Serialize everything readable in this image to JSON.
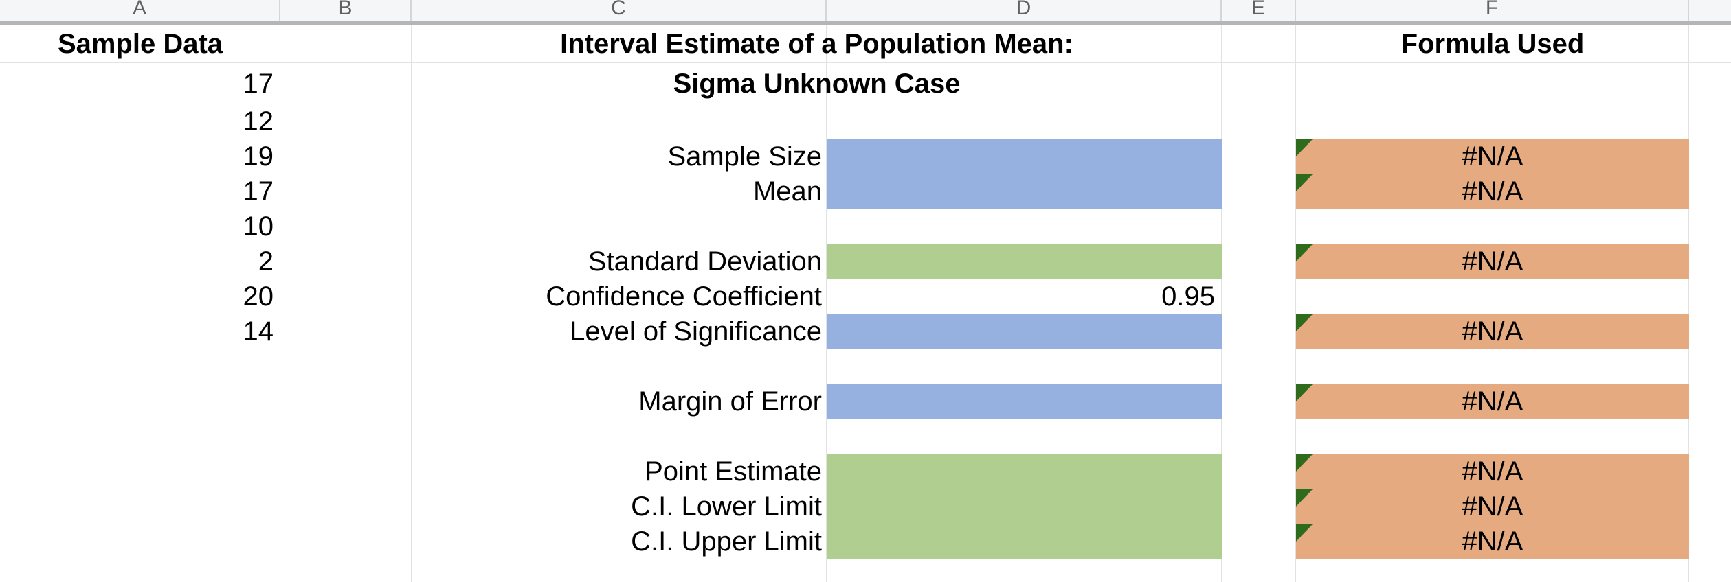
{
  "colors": {
    "input_blue": "#96B0DF",
    "input_green": "#AFCE90",
    "error_orange": "#E5AA80",
    "error_indicator_green": "#2F6B1D"
  },
  "column_headers": {
    "a": "A",
    "b": "B",
    "c": "C",
    "d": "D",
    "e": "E",
    "f": "F"
  },
  "col_a": {
    "header": "Sample Data",
    "values": [
      "17",
      "12",
      "19",
      "17",
      "10",
      "2",
      "20",
      "14"
    ]
  },
  "title": {
    "line1": "Interval Estimate of a Population Mean:",
    "line2": "Sigma Unknown Case"
  },
  "labels": {
    "sample_size": "Sample Size",
    "mean": "Mean",
    "standard_deviation": "Standard Deviation",
    "confidence_coefficient": "Confidence Coefficient",
    "level_of_significance": "Level of Significance",
    "margin_of_error": "Margin of Error",
    "point_estimate": "Point Estimate",
    "ci_lower_limit": "C.I. Lower Limit",
    "ci_upper_limit": "C.I. Upper Limit"
  },
  "values": {
    "confidence_coefficient": "0.95"
  },
  "formula": {
    "header": "Formula Used",
    "results": [
      "#N/A",
      "#N/A",
      "#N/A",
      "#N/A",
      "#N/A",
      "#N/A",
      "#N/A",
      "#N/A"
    ]
  }
}
